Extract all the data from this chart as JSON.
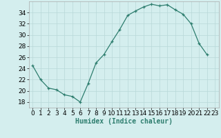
{
  "x": [
    0,
    1,
    2,
    3,
    4,
    5,
    6,
    7,
    8,
    9,
    10,
    11,
    12,
    13,
    14,
    15,
    16,
    17,
    18,
    19,
    20,
    21,
    22,
    23
  ],
  "y": [
    24.5,
    22.0,
    20.5,
    20.2,
    19.3,
    19.0,
    18.0,
    21.3,
    25.0,
    26.5,
    28.8,
    31.0,
    33.5,
    34.3,
    35.0,
    35.5,
    35.2,
    35.4,
    34.5,
    33.7,
    32.0,
    28.5,
    26.5,
    null
  ],
  "xlabel": "Humidex (Indice chaleur)",
  "xlim": [
    -0.5,
    23.5
  ],
  "ylim": [
    17,
    36
  ],
  "yticks": [
    18,
    20,
    22,
    24,
    26,
    28,
    30,
    32,
    34
  ],
  "xticks": [
    0,
    1,
    2,
    3,
    4,
    5,
    6,
    7,
    8,
    9,
    10,
    11,
    12,
    13,
    14,
    15,
    16,
    17,
    18,
    19,
    20,
    21,
    22,
    23
  ],
  "line_color": "#2d7d6e",
  "marker": "+",
  "bg_color": "#d4eeee",
  "grid_color": "#b8d8d8",
  "label_fontsize": 7,
  "tick_fontsize": 6.5
}
